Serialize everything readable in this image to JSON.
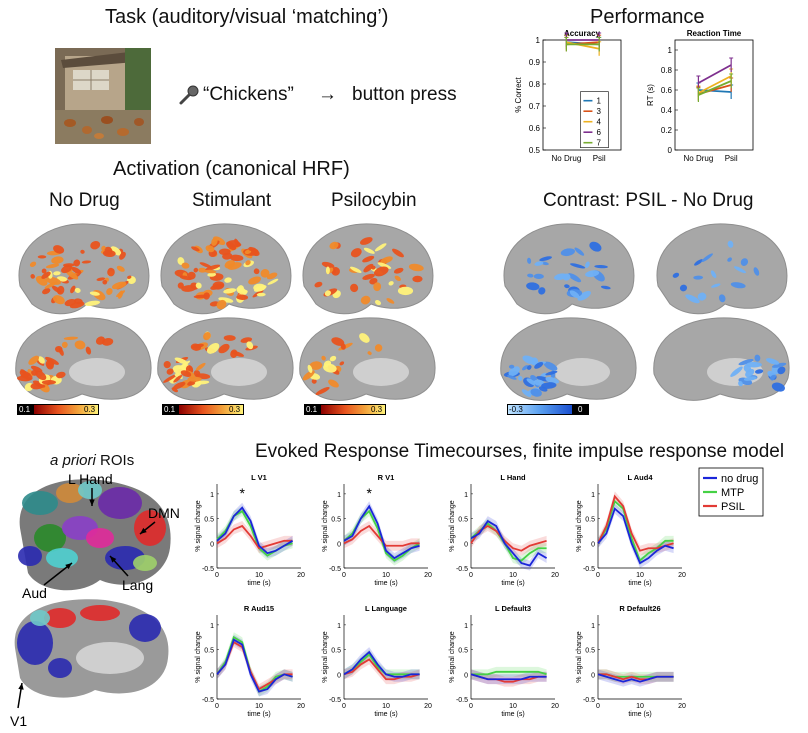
{
  "task": {
    "title": "Task (auditory/visual ‘matching’)",
    "stimulus_word": "“Chickens”",
    "arrow": "→",
    "response": "button press",
    "mic_icon": "microphone-icon"
  },
  "performance": {
    "title": "Performance",
    "accuracy": {
      "title": "Accuracy",
      "ylabel": "% Correct",
      "yticks": [
        "1",
        "0.9",
        "0.8",
        "0.7",
        "0.6",
        "0.5"
      ],
      "xticks": [
        "No Drug",
        "Psil"
      ],
      "legend": [
        "1",
        "3",
        "4",
        "6",
        "7"
      ]
    },
    "rt": {
      "title": "Reaction Time",
      "ylabel": "RT (s)",
      "yticks": [
        "1",
        "0.8",
        "0.6",
        "0.4",
        "0.2",
        "0"
      ],
      "xticks": [
        "No Drug",
        "Psil"
      ]
    }
  },
  "activation": {
    "title": "Activation (canonical HRF)",
    "panels": [
      "No Drug",
      "Stimulant",
      "Psilocybin"
    ],
    "contrast_title": "Contrast: PSIL - No Drug",
    "colorbar_min": "0.1",
    "colorbar_max": "0.3",
    "contrast_min": "-0.3",
    "contrast_max": "0",
    "colors": {
      "hot_low": "#e8531e",
      "hot_high": "#fff27a",
      "cool": "#4f8fe8"
    }
  },
  "rois": {
    "title_italic": "a priori",
    "title_rest": " ROIs",
    "labels": {
      "hand": "L Hand",
      "dmn": "DMN",
      "aud": "Aud",
      "lang": "Lang",
      "v1": "V1"
    }
  },
  "timecourses": {
    "title": "Evoked Response Timecourses, finite impulse response model",
    "legend": [
      "no drug",
      "MTP",
      "PSIL"
    ],
    "ylabel": "% signal change",
    "xlabel": "time (s)",
    "yticks": [
      "1",
      "0.5",
      "0",
      "-0.5"
    ],
    "xticks": [
      "0",
      "10",
      "20"
    ],
    "star": "*"
  },
  "chart_data": [
    {
      "type": "line",
      "title": "Accuracy",
      "xlabel": "",
      "ylabel": "% Correct",
      "categories": [
        "No Drug",
        "Psil"
      ],
      "ylim": [
        0.5,
        1.0
      ],
      "legend": "inside",
      "series": [
        {
          "name": "1",
          "color": "#1f77b4",
          "values": [
            0.99,
            0.98
          ]
        },
        {
          "name": "3",
          "color": "#d95319",
          "values": [
            0.98,
            0.99
          ]
        },
        {
          "name": "4",
          "color": "#edb120",
          "values": [
            0.99,
            0.96
          ]
        },
        {
          "name": "6",
          "color": "#7e2f8e",
          "values": [
            1.0,
            1.0
          ]
        },
        {
          "name": "7",
          "color": "#77ac30",
          "values": [
            0.98,
            0.98
          ]
        }
      ]
    },
    {
      "type": "line",
      "title": "Reaction Time",
      "xlabel": "",
      "ylabel": "RT (s)",
      "categories": [
        "No Drug",
        "Psil"
      ],
      "ylim": [
        0,
        1.1
      ],
      "series": [
        {
          "name": "1",
          "color": "#1f77b4",
          "values": [
            0.6,
            0.58
          ]
        },
        {
          "name": "3",
          "color": "#d95319",
          "values": [
            0.56,
            0.65
          ]
        },
        {
          "name": "4",
          "color": "#edb120",
          "values": [
            0.57,
            0.74
          ]
        },
        {
          "name": "6",
          "color": "#7e2f8e",
          "values": [
            0.67,
            0.85
          ]
        },
        {
          "name": "7",
          "color": "#77ac30",
          "values": [
            0.55,
            0.69
          ]
        }
      ]
    },
    {
      "type": "line",
      "panels": [
        {
          "title": "L V1",
          "star": true,
          "x": [
            0,
            2,
            4,
            6,
            8,
            10,
            12,
            14,
            16,
            18
          ],
          "no_drug": [
            0.05,
            0.2,
            0.55,
            0.72,
            0.45,
            -0.05,
            -0.2,
            -0.15,
            -0.05,
            0.05
          ],
          "mtp": [
            0.08,
            0.25,
            0.55,
            0.65,
            0.35,
            -0.1,
            -0.25,
            -0.15,
            -0.05,
            0.0
          ],
          "psil": [
            0.0,
            0.1,
            0.28,
            0.35,
            0.15,
            -0.1,
            -0.05,
            0.0,
            0.05,
            0.05
          ]
        },
        {
          "title": "R V1",
          "star": true,
          "x": [
            0,
            2,
            4,
            6,
            8,
            10,
            12,
            14,
            16,
            18
          ],
          "no_drug": [
            0.05,
            0.15,
            0.5,
            0.75,
            0.4,
            -0.15,
            -0.3,
            -0.2,
            -0.1,
            -0.05
          ],
          "mtp": [
            0.05,
            0.2,
            0.5,
            0.65,
            0.3,
            -0.2,
            -0.35,
            -0.25,
            -0.1,
            0.0
          ],
          "psil": [
            0.0,
            0.08,
            0.25,
            0.35,
            0.15,
            -0.05,
            -0.05,
            -0.05,
            0.0,
            0.0
          ]
        },
        {
          "title": "L Hand",
          "star": false,
          "x": [
            0,
            2,
            4,
            6,
            8,
            10,
            12,
            14,
            16,
            18
          ],
          "no_drug": [
            0.1,
            0.2,
            0.45,
            0.35,
            0.0,
            -0.2,
            -0.4,
            -0.45,
            -0.2,
            -0.3
          ],
          "mtp": [
            0.1,
            0.25,
            0.4,
            0.25,
            0.0,
            -0.3,
            -0.35,
            -0.2,
            -0.1,
            -0.1
          ],
          "psil": [
            0.0,
            0.25,
            0.35,
            0.25,
            0.05,
            -0.1,
            -0.15,
            -0.05,
            0.0,
            0.05
          ]
        },
        {
          "title": "L Aud4",
          "star": false,
          "x": [
            0,
            2,
            4,
            6,
            8,
            10,
            12,
            14,
            16,
            18
          ],
          "no_drug": [
            0.0,
            0.2,
            0.7,
            0.55,
            0.0,
            -0.4,
            -0.3,
            -0.15,
            -0.05,
            -0.1
          ],
          "mtp": [
            0.0,
            0.3,
            0.85,
            0.7,
            0.1,
            -0.35,
            -0.2,
            -0.1,
            0.05,
            0.05
          ],
          "psil": [
            0.0,
            0.35,
            0.95,
            0.75,
            0.2,
            -0.15,
            -0.1,
            -0.1,
            -0.05,
            0.0
          ]
        },
        {
          "title": "R Aud15",
          "star": false,
          "x": [
            0,
            2,
            4,
            6,
            8,
            10,
            12,
            14,
            16,
            18
          ],
          "no_drug": [
            0.0,
            0.2,
            0.7,
            0.6,
            0.0,
            -0.35,
            -0.3,
            -0.1,
            0.0,
            -0.05
          ],
          "mtp": [
            0.0,
            0.25,
            0.75,
            0.65,
            0.05,
            -0.35,
            -0.25,
            -0.05,
            0.0,
            -0.05
          ],
          "psil": [
            0.0,
            0.2,
            0.65,
            0.55,
            0.05,
            -0.3,
            -0.2,
            -0.1,
            0.0,
            0.0
          ]
        },
        {
          "title": "L Language",
          "star": false,
          "x": [
            0,
            2,
            4,
            6,
            8,
            10,
            12,
            14,
            16,
            18
          ],
          "no_drug": [
            0.0,
            0.1,
            0.3,
            0.45,
            0.2,
            0.0,
            -0.05,
            -0.05,
            0.0,
            0.0
          ],
          "mtp": [
            0.0,
            0.1,
            0.25,
            0.4,
            0.15,
            0.0,
            0.0,
            0.0,
            0.0,
            0.0
          ],
          "psil": [
            0.0,
            0.05,
            0.2,
            0.3,
            0.1,
            -0.1,
            -0.1,
            -0.05,
            -0.05,
            0.0
          ]
        },
        {
          "title": "L Default3",
          "star": false,
          "x": [
            0,
            2,
            4,
            6,
            8,
            10,
            12,
            14,
            16,
            18
          ],
          "no_drug": [
            0.0,
            -0.05,
            -0.1,
            -0.1,
            -0.1,
            -0.1,
            -0.1,
            -0.05,
            -0.05,
            -0.05
          ],
          "mtp": [
            0.0,
            0.0,
            0.0,
            0.05,
            0.05,
            0.05,
            0.05,
            0.05,
            0.05,
            0.0
          ],
          "psil": [
            0.0,
            -0.05,
            -0.1,
            -0.1,
            -0.15,
            -0.15,
            -0.1,
            -0.1,
            -0.05,
            -0.05
          ]
        },
        {
          "title": "R Default26",
          "star": false,
          "x": [
            0,
            2,
            4,
            6,
            8,
            10,
            12,
            14,
            16,
            18
          ],
          "no_drug": [
            0.0,
            -0.05,
            -0.1,
            -0.15,
            -0.1,
            -0.15,
            -0.1,
            -0.05,
            -0.05,
            -0.05
          ],
          "mtp": [
            0.0,
            0.0,
            -0.05,
            -0.05,
            -0.05,
            -0.05,
            -0.05,
            -0.05,
            -0.05,
            -0.05
          ],
          "psil": [
            0.0,
            0.0,
            -0.05,
            -0.1,
            -0.05,
            -0.1,
            -0.1,
            -0.05,
            -0.05,
            -0.05
          ]
        }
      ],
      "series_colors": {
        "no_drug": "#1b26d9",
        "mtp": "#45d145",
        "psil": "#e23a35"
      },
      "ylim": [
        -0.5,
        1.2
      ],
      "xlim": [
        0,
        20
      ]
    }
  ]
}
